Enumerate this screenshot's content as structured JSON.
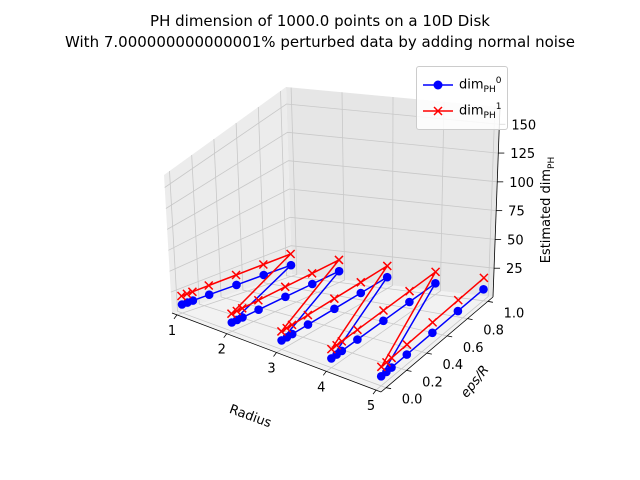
{
  "chart_data": {
    "type": "line",
    "projection": "3d",
    "title_line1": "PH dimension of 1000.0 points on a 10D Disk",
    "title_line2": "With 7.000000000000001% perturbed data by adding normal noise",
    "xlabel": "Radius",
    "ylabel": "eps/R",
    "zlabel": "Estimated dim",
    "zlabel_sub": "PH",
    "xlim": [
      0.9,
      5.1
    ],
    "ylim": [
      -0.05,
      1.05
    ],
    "zlim": [
      0,
      165
    ],
    "xticks": [
      1,
      2,
      3,
      4,
      5
    ],
    "yticks": [
      0.0,
      0.2,
      0.4,
      0.6,
      0.8,
      1.0
    ],
    "zticks": [
      25,
      50,
      75,
      100,
      125,
      150
    ],
    "xtick_labels": [
      "1",
      "2",
      "3",
      "4",
      "5"
    ],
    "ytick_labels": [
      "0.0",
      "0.2",
      "0.4",
      "0.6",
      "0.8",
      "1.0"
    ],
    "ztick_labels": [
      "25",
      "50",
      "75",
      "100",
      "125",
      "150"
    ],
    "grid": true,
    "legend_position": "top-right",
    "series": [
      {
        "name": "dim",
        "sub": "PH",
        "sup": "0",
        "color": "#0000ff",
        "marker": "circle",
        "x": [
          1,
          1,
          1,
          1,
          1,
          1,
          1,
          2,
          2,
          2,
          2,
          2,
          2,
          2,
          3,
          3,
          3,
          3,
          3,
          3,
          3,
          4,
          4,
          4,
          4,
          4,
          4,
          4,
          5,
          5,
          5,
          5,
          5,
          5,
          5
        ],
        "y": [
          0,
          0.05,
          0.1,
          0.25,
          0.5,
          0.75,
          1.0,
          0,
          0.05,
          0.1,
          0.25,
          0.5,
          0.75,
          1.0,
          0,
          0.05,
          0.1,
          0.25,
          0.5,
          0.75,
          1.0,
          0,
          0.05,
          0.1,
          0.25,
          0.5,
          0.75,
          1.0,
          0,
          0.05,
          0.1,
          0.25,
          0.5,
          0.75,
          1.0
        ],
        "z": [
          10,
          10,
          10,
          10,
          10,
          10,
          10,
          10,
          10,
          10,
          10,
          10,
          10,
          10,
          10,
          10,
          10,
          10,
          10,
          10,
          10,
          10,
          10,
          10,
          10,
          10,
          10,
          10,
          10,
          10,
          10,
          10,
          10,
          10,
          10
        ]
      },
      {
        "name": "dim",
        "sub": "PH",
        "sup": "1",
        "color": "#ff0000",
        "marker": "x",
        "x": [
          1,
          1,
          1,
          1,
          1,
          1,
          1,
          2,
          2,
          2,
          2,
          2,
          2,
          2,
          3,
          3,
          3,
          3,
          3,
          3,
          3,
          4,
          4,
          4,
          4,
          4,
          4,
          4,
          5,
          5,
          5,
          5,
          5,
          5,
          5
        ],
        "y": [
          0,
          0.05,
          0.1,
          0.25,
          0.5,
          0.75,
          1.0,
          0,
          0.05,
          0.1,
          0.25,
          0.5,
          0.75,
          1.0,
          0,
          0.05,
          0.1,
          0.25,
          0.5,
          0.75,
          1.0,
          0,
          0.05,
          0.1,
          0.25,
          0.5,
          0.75,
          1.0,
          0,
          0.05,
          0.1,
          0.25,
          0.5,
          0.75,
          1.0
        ],
        "z": [
          20,
          20,
          20,
          20,
          20,
          20,
          20,
          20,
          20,
          20,
          20,
          20,
          20,
          20,
          20,
          20,
          20,
          20,
          20,
          20,
          20,
          20,
          20,
          20,
          20,
          20,
          20,
          20,
          20,
          20,
          20,
          20,
          20,
          20,
          20
        ]
      }
    ]
  }
}
